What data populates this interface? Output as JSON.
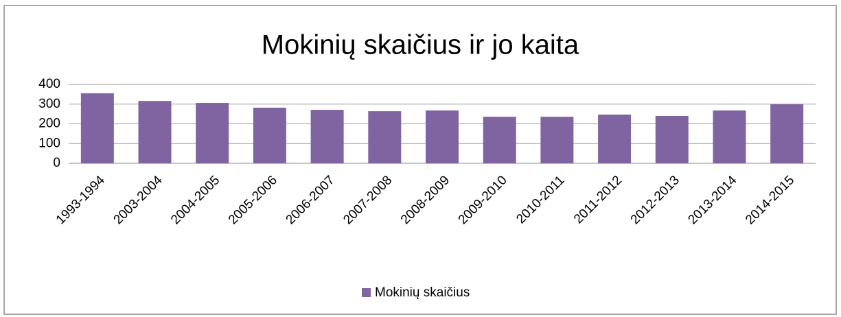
{
  "chart_data": {
    "type": "bar",
    "title": "Mokinių skaičius ir jo kaita",
    "categories": [
      "1993-1994",
      "2003-2004",
      "2004-2005",
      "2005-2006",
      "2006-2007",
      "2007-2008",
      "2008-2009",
      "2009-2010",
      "2010-2011",
      "2011-2012",
      "2012-2013",
      "2013-2014",
      "2014-2015"
    ],
    "series": [
      {
        "name": "Mokinių skaičius",
        "color": "#8064a2",
        "values": [
          355,
          316,
          306,
          282,
          271,
          264,
          268,
          236,
          236,
          247,
          240,
          268,
          299
        ]
      }
    ],
    "ylim": [
      0,
      400
    ],
    "yticks": [
      0,
      100,
      200,
      300,
      400
    ],
    "grid": true,
    "legend": "bottom"
  }
}
